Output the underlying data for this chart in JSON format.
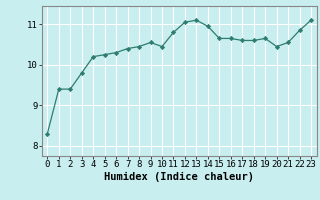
{
  "x": [
    0,
    1,
    2,
    3,
    4,
    5,
    6,
    7,
    8,
    9,
    10,
    11,
    12,
    13,
    14,
    15,
    16,
    17,
    18,
    19,
    20,
    21,
    22,
    23
  ],
  "y": [
    8.3,
    9.4,
    9.4,
    9.8,
    10.2,
    10.25,
    10.3,
    10.4,
    10.45,
    10.55,
    10.45,
    10.8,
    11.05,
    11.1,
    10.95,
    10.65,
    10.65,
    10.6,
    10.6,
    10.65,
    10.45,
    10.55,
    10.85,
    11.1
  ],
  "line_color": "#2e7d6e",
  "marker": "D",
  "marker_size": 2.2,
  "bg_color": "#c8eef0",
  "grid_color": "#ffffff",
  "xlabel": "Humidex (Indice chaleur)",
  "xlim": [
    -0.5,
    23.5
  ],
  "ylim": [
    7.75,
    11.45
  ],
  "yticks": [
    8,
    9,
    10,
    11
  ],
  "xticks": [
    0,
    1,
    2,
    3,
    4,
    5,
    6,
    7,
    8,
    9,
    10,
    11,
    12,
    13,
    14,
    15,
    16,
    17,
    18,
    19,
    20,
    21,
    22,
    23
  ],
  "xtick_labels": [
    "0",
    "1",
    "2",
    "3",
    "4",
    "5",
    "6",
    "7",
    "8",
    "9",
    "10",
    "11",
    "12",
    "13",
    "14",
    "15",
    "16",
    "17",
    "18",
    "19",
    "20",
    "21",
    "22",
    "23"
  ],
  "axis_color": "#888888",
  "tick_fontsize": 6.5,
  "label_fontsize": 7.5
}
